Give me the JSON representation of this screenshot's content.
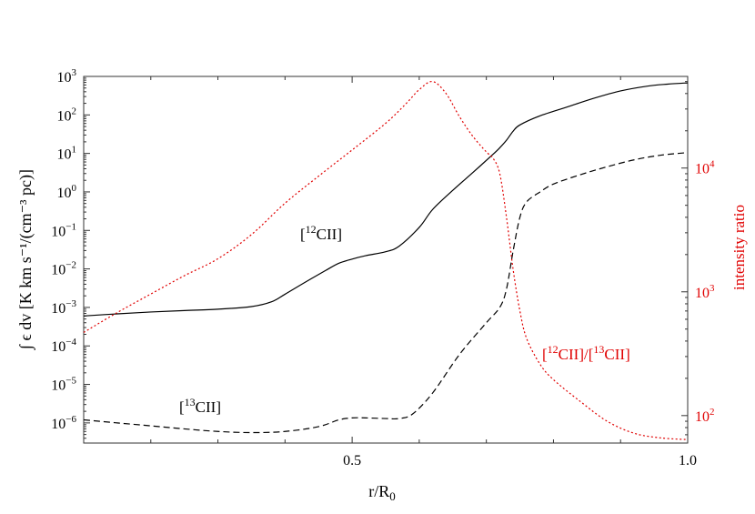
{
  "chart_data": {
    "type": "line",
    "xlabel": "r/R",
    "xlabel_sub": "0",
    "ylabel_left": "∫ ϵ dv [K km s⁻¹/(cm⁻³ pc)]",
    "ylabel_right": "intensity ratio",
    "x_scale": "linear",
    "xlim": [
      0.1,
      1.0
    ],
    "x_ticks": [
      {
        "value": 0.5,
        "label": "0.5"
      },
      {
        "value": 1.0,
        "label": "1.0"
      }
    ],
    "y_left_scale": "log",
    "y_left_lim": [
      3e-07,
      1000
    ],
    "y_left_ticks": [
      {
        "exp": -6,
        "label": "10",
        "sup": "−6"
      },
      {
        "exp": -5,
        "label": "10",
        "sup": "−5"
      },
      {
        "exp": -4,
        "label": "10",
        "sup": "−4"
      },
      {
        "exp": -3,
        "label": "10",
        "sup": "−3"
      },
      {
        "exp": -2,
        "label": "10",
        "sup": "−2"
      },
      {
        "exp": -1,
        "label": "10",
        "sup": "−1"
      },
      {
        "exp": 0,
        "label": "10",
        "sup": "0"
      },
      {
        "exp": 1,
        "label": "10",
        "sup": "1"
      },
      {
        "exp": 2,
        "label": "10",
        "sup": "2"
      },
      {
        "exp": 3,
        "label": "10",
        "sup": "3"
      }
    ],
    "y_right_scale": "log",
    "y_right_lim": [
      60,
      55000
    ],
    "y_right_ticks": [
      {
        "exp": 2,
        "label": "10",
        "sup": "2"
      },
      {
        "exp": 3,
        "label": "10",
        "sup": "3"
      },
      {
        "exp": 4,
        "label": "10",
        "sup": "4"
      }
    ],
    "series": [
      {
        "axis": "left",
        "color": "#000000",
        "dash": "solid",
        "x": [
          0.1,
          0.15,
          0.2,
          0.25,
          0.3,
          0.35,
          0.38,
          0.4,
          0.43,
          0.46,
          0.48,
          0.5,
          0.52,
          0.55,
          0.57,
          0.6,
          0.62,
          0.65,
          0.68,
          0.71,
          0.72,
          0.73,
          0.74,
          0.75,
          0.78,
          0.82,
          0.86,
          0.9,
          0.94,
          0.97,
          1.0
        ],
        "y": [
          0.0006,
          0.00068,
          0.00076,
          0.00083,
          0.0009,
          0.00105,
          0.0014,
          0.0022,
          0.0045,
          0.009,
          0.014,
          0.018,
          0.022,
          0.028,
          0.039,
          0.12,
          0.35,
          1.1,
          3.2,
          9.5,
          14,
          22,
          38,
          55,
          95,
          160,
          270,
          420,
          560,
          630,
          680
        ]
      },
      {
        "axis": "left",
        "color": "#000000",
        "dash": "dashed",
        "x": [
          0.1,
          0.15,
          0.2,
          0.25,
          0.3,
          0.35,
          0.4,
          0.45,
          0.48,
          0.5,
          0.52,
          0.55,
          0.57,
          0.59,
          0.62,
          0.66,
          0.7,
          0.72,
          0.73,
          0.74,
          0.75,
          0.76,
          0.78,
          0.8,
          0.84,
          0.88,
          0.92,
          0.96,
          1.0
        ],
        "y": [
          1.2e-06,
          1e-06,
          8.4e-07,
          7e-07,
          6e-07,
          5.6e-07,
          6e-07,
          8e-07,
          1.2e-06,
          1.35e-06,
          1.35e-06,
          1.3e-06,
          1.3e-06,
          1.7e-06,
          6e-06,
          6e-05,
          0.0004,
          0.001,
          0.003,
          0.03,
          0.22,
          0.55,
          1.0,
          1.6,
          2.8,
          4.5,
          6.8,
          9,
          10.5
        ]
      },
      {
        "axis": "right",
        "color": "#e00000",
        "dash": "dotted",
        "x": [
          0.1,
          0.15,
          0.2,
          0.25,
          0.3,
          0.35,
          0.4,
          0.45,
          0.5,
          0.55,
          0.58,
          0.6,
          0.62,
          0.64,
          0.66,
          0.68,
          0.7,
          0.71,
          0.72,
          0.73,
          0.74,
          0.75,
          0.76,
          0.78,
          0.8,
          0.84,
          0.88,
          0.92,
          0.96,
          1.0
        ],
        "y": [
          470,
          680,
          960,
          1350,
          1850,
          2900,
          5200,
          8600,
          14000,
          23000,
          33000,
          43000,
          50000,
          40000,
          26000,
          18000,
          13500,
          12000,
          9000,
          4000,
          1500,
          700,
          420,
          260,
          195,
          130,
          90,
          72,
          66,
          64
        ]
      }
    ],
    "annotations": [
      {
        "label": "12",
        "text": "CII",
        "color": "#000000"
      },
      {
        "label": "13",
        "text": "CII",
        "color": "#000000"
      },
      {
        "label": "12",
        "text": "CII",
        "label2": "13",
        "text2": "CII",
        "color": "#e00000"
      }
    ]
  }
}
